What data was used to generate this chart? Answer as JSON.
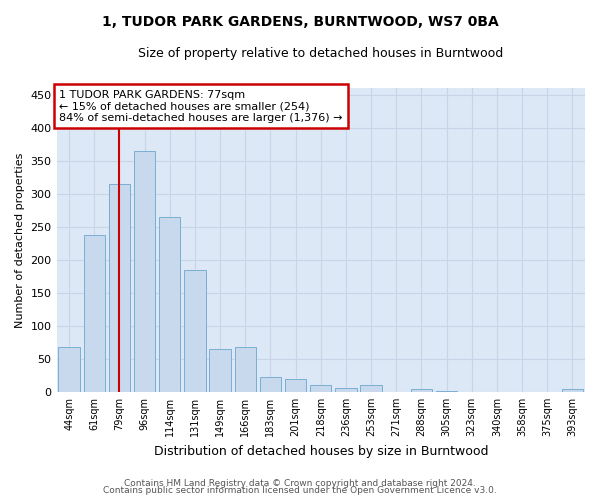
{
  "title": "1, TUDOR PARK GARDENS, BURNTWOOD, WS7 0BA",
  "subtitle": "Size of property relative to detached houses in Burntwood",
  "xlabel": "Distribution of detached houses by size in Burntwood",
  "ylabel": "Number of detached properties",
  "footnote1": "Contains HM Land Registry data © Crown copyright and database right 2024.",
  "footnote2": "Contains public sector information licensed under the Open Government Licence v3.0.",
  "bar_labels": [
    "44sqm",
    "61sqm",
    "79sqm",
    "96sqm",
    "114sqm",
    "131sqm",
    "149sqm",
    "166sqm",
    "183sqm",
    "201sqm",
    "218sqm",
    "236sqm",
    "253sqm",
    "271sqm",
    "288sqm",
    "305sqm",
    "323sqm",
    "340sqm",
    "358sqm",
    "375sqm",
    "393sqm"
  ],
  "bar_values": [
    68,
    237,
    315,
    365,
    265,
    185,
    65,
    68,
    22,
    20,
    10,
    6,
    10,
    0,
    5,
    2,
    0,
    0,
    0,
    0,
    4
  ],
  "bar_color": "#c8d9ee",
  "bar_edge_color": "#7aaed4",
  "annotation_label": "1 TUDOR PARK GARDENS: 77sqm",
  "annotation_line2": "← 15% of detached houses are smaller (254)",
  "annotation_line3": "84% of semi-detached houses are larger (1,376) →",
  "annotation_box_color": "#ffffff",
  "annotation_box_edge": "#cc0000",
  "vline_color": "#cc0000",
  "grid_color": "#c8d4e8",
  "plot_bg_color": "#dce8f5",
  "fig_bg_color": "#ffffff",
  "ylim": [
    0,
    460
  ],
  "yticks": [
    0,
    50,
    100,
    150,
    200,
    250,
    300,
    350,
    400,
    450
  ],
  "vline_index": 2
}
